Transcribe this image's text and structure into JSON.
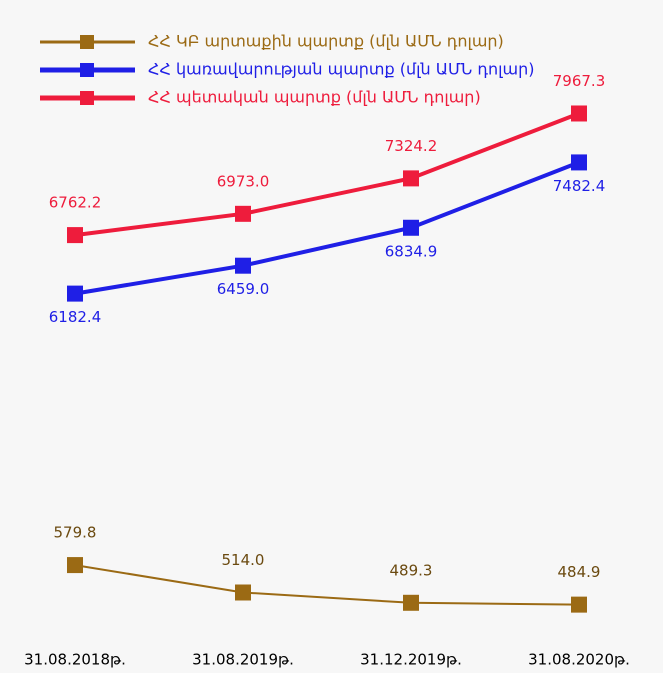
{
  "chart_data": {
    "type": "line",
    "categories": [
      "31.08.2018թ.",
      "31.08.2019թ.",
      "31.12.2019թ.",
      "31.08.2020թ."
    ],
    "series": [
      {
        "name": "ՀՀ ԿԲ արտաքին պարտք (մլն ԱՄՆ դոլար)",
        "color": "#9b6a14",
        "axis": "y2",
        "values": [
          579.8,
          514.0,
          489.3,
          484.9
        ],
        "value_labels": [
          "579.8",
          "514.0",
          "489.3",
          "484.9"
        ]
      },
      {
        "name": "ՀՀ կառավարության պարտք (մլն ԱՄՆ դոլար)",
        "color": "#1f1fe6",
        "values": [
          6182.4,
          6459.0,
          6834.9,
          7482.4
        ],
        "value_labels": [
          "6182.4",
          "6459.0",
          "6834.9",
          "7482.4"
        ]
      },
      {
        "name": "ՀՀ պետական պարտք (մլն ԱՄՆ դոլար)",
        "color": "#ee1c3c",
        "values": [
          6762.2,
          6973.0,
          7324.2,
          7967.3
        ],
        "value_labels": [
          "6762.2",
          "6973.0",
          "7324.2",
          "7967.3"
        ]
      }
    ],
    "ylim": [
      2750,
      8200
    ],
    "y2lim": [
      400,
      1720
    ],
    "legend": "top-left"
  }
}
